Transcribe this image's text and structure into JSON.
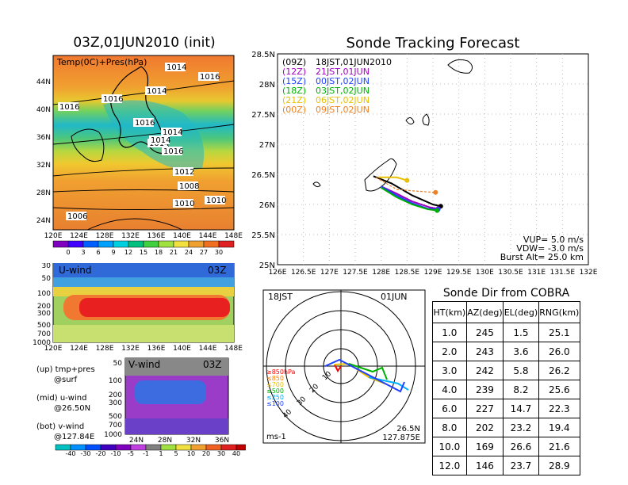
{
  "left_title": "03Z,01JUN2010 (init)",
  "map_panel": {
    "label": "Temp(0C)+Pres(hPa)",
    "lat_labels": [
      "44N",
      "40N",
      "36N",
      "32N",
      "28N",
      "24N"
    ],
    "lon_labels": [
      "120E",
      "124E",
      "128E",
      "132E",
      "136E",
      "140E",
      "144E",
      "148E"
    ],
    "isobar_labels": [
      "1014",
      "1016",
      "1016",
      "1014",
      "1016",
      "1014",
      "1016",
      "1014",
      "1016",
      "1014",
      "1012",
      "1008",
      "1010",
      "1010",
      "1006"
    ],
    "colorbar_labels": [
      "0",
      "3",
      "6",
      "9",
      "12",
      "15",
      "18",
      "21",
      "24",
      "27",
      "30"
    ]
  },
  "u_panel": {
    "label": "U-wind",
    "time": "03Z",
    "pres_labels": [
      "30",
      "50",
      "100",
      "200",
      "300",
      "500",
      "700",
      "1000"
    ],
    "lon_labels": [
      "120E",
      "124E",
      "128E",
      "132E",
      "136E",
      "140E",
      "144E",
      "148E"
    ]
  },
  "v_panel": {
    "label": "V-wind",
    "time": "03Z",
    "pres_labels": [
      "50",
      "100",
      "200",
      "300",
      "500",
      "700",
      "1000"
    ],
    "lat_labels": [
      "24N",
      "28N",
      "32N",
      "36N"
    ],
    "colorbar_labels": [
      "-40",
      "-30",
      "-20",
      "-10",
      "-5",
      "-1",
      "1",
      "5",
      "10",
      "20",
      "30",
      "40"
    ]
  },
  "legend_notes": [
    {
      "l1": "(up) tmp+pres",
      "l2": "@surf"
    },
    {
      "l1": "(mid) u-wind",
      "l2": "@26.50N"
    },
    {
      "l1": "(bot) v-wind",
      "l2": "@127.84E"
    }
  ],
  "track": {
    "title": "Sonde Tracking Forecast",
    "lat_labels": [
      "28.5N",
      "28N",
      "27.5N",
      "27N",
      "26.5N",
      "26N",
      "25.5N",
      "25N"
    ],
    "lon_labels": [
      "126E",
      "126.5E",
      "127E",
      "127.5E",
      "128E",
      "128.5E",
      "129E",
      "129.5E",
      "130E",
      "130.5E",
      "131E",
      "131.5E",
      "132E"
    ],
    "runs": [
      {
        "label": "(09Z)",
        "time": "18JST,01JUN2010",
        "color": "#000000"
      },
      {
        "label": "(12Z)",
        "time": "21JST,01JUN",
        "color": "#a000c0"
      },
      {
        "label": "(15Z)",
        "time": "00JST,02JUN",
        "color": "#2040ff"
      },
      {
        "label": "(18Z)",
        "time": "03JST,02JUN",
        "color": "#00b000"
      },
      {
        "label": "(21Z)",
        "time": "06JST,02JUN",
        "color": "#e8c000"
      },
      {
        "label": "(00Z)",
        "time": "09JST,02JUN",
        "color": "#f08020"
      }
    ],
    "params": [
      "VUP= 5.0 m/s",
      "VDW= -3.0 m/s",
      "Burst Alt= 25.0 km"
    ]
  },
  "hodo": {
    "time": "18JST",
    "date": "01JUN",
    "unit": "ms-1",
    "loc_lat": "26.5N",
    "loc_lon": "127.875E",
    "ring_labels": [
      "10",
      "20",
      "30",
      "40"
    ],
    "legend": [
      {
        "text": "≥850hPa",
        "color": "#ff0000"
      },
      {
        "text": "≤850",
        "color": "#ff8000"
      },
      {
        "text": "≤700",
        "color": "#e8c000"
      },
      {
        "text": "≤500",
        "color": "#00b000"
      },
      {
        "text": "≤250",
        "color": "#00b0ff"
      },
      {
        "text": "≤100",
        "color": "#2040ff"
      }
    ]
  },
  "cobra": {
    "title": "Sonde Dir from COBRA",
    "headers": [
      "HT(km)",
      "AZ(deg)",
      "EL(deg)",
      "RNG(km)"
    ],
    "rows": [
      [
        "1.0",
        "245",
        "1.5",
        "25.1"
      ],
      [
        "2.0",
        "243",
        "3.6",
        "26.0"
      ],
      [
        "3.0",
        "242",
        "5.8",
        "26.2"
      ],
      [
        "4.0",
        "239",
        "8.2",
        "25.6"
      ],
      [
        "6.0",
        "227",
        "14.7",
        "22.3"
      ],
      [
        "8.0",
        "202",
        "23.2",
        "19.4"
      ],
      [
        "10.0",
        "169",
        "26.6",
        "21.6"
      ],
      [
        "12.0",
        "146",
        "23.7",
        "28.9"
      ]
    ]
  },
  "chart_data": {
    "type": "line",
    "title": "Sonde Tracking Forecast",
    "xlim": [
      126,
      132
    ],
    "ylim": [
      25,
      28.5
    ],
    "series": [
      {
        "name": "(09Z) 18JST,01JUN2010",
        "x": [
          127.85,
          128.2,
          128.6,
          129.0,
          129.15
        ],
        "y": [
          26.47,
          26.35,
          26.15,
          26.0,
          25.97
        ]
      },
      {
        "name": "(12Z) 21JST,01JUN",
        "x": [
          128.0,
          128.3,
          128.6,
          128.95,
          129.1
        ],
        "y": [
          26.3,
          26.18,
          26.05,
          25.95,
          25.93
        ]
      },
      {
        "name": "(15Z) 00JST,02JUN",
        "x": [
          128.0,
          128.3,
          128.6,
          128.9,
          129.1
        ],
        "y": [
          26.3,
          26.15,
          26.02,
          25.93,
          25.92
        ]
      },
      {
        "name": "(18Z) 03JST,02JUN",
        "x": [
          128.0,
          128.3,
          128.6,
          128.9,
          129.08
        ],
        "y": [
          26.28,
          26.12,
          26.0,
          25.92,
          25.9
        ]
      },
      {
        "name": "(21Z) 06JST,02JUN",
        "x": [
          127.95,
          128.3,
          128.5
        ],
        "y": [
          26.45,
          26.45,
          26.4
        ]
      },
      {
        "name": "(00Z) 09JST,02JUN",
        "x": [
          127.9,
          128.3,
          128.7,
          129.05
        ],
        "y": [
          26.45,
          26.25,
          26.22,
          26.2
        ]
      }
    ]
  }
}
